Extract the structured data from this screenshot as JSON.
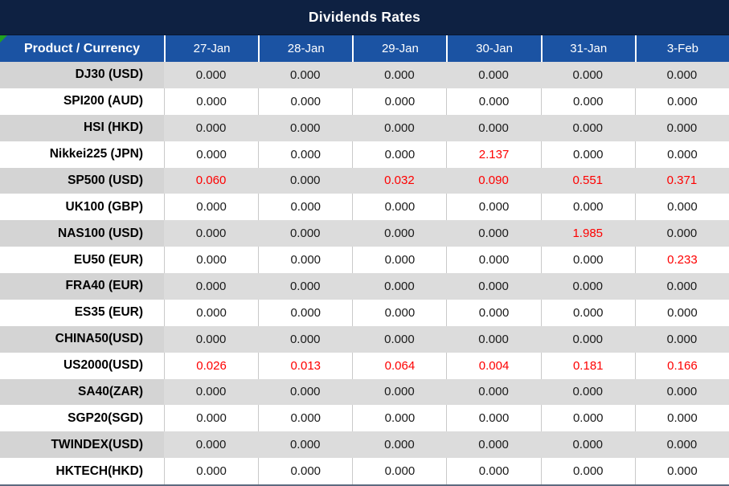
{
  "title": "Dividends Rates",
  "colors": {
    "title_bg": "#0e2142",
    "header_bg": "#1b53a3",
    "row_alt_bg": "#dcdcdc",
    "product_alt_bg": "#d4d4d4",
    "grid_line": "#c9c9c9",
    "negative_value": "#fe0000",
    "corner_marker": "#21a121"
  },
  "header": {
    "product_label": "Product / Currency",
    "dates": [
      "27-Jan",
      "28-Jan",
      "29-Jan",
      "30-Jan",
      "31-Jan",
      "3-Feb"
    ]
  },
  "rows": [
    {
      "product": "DJ30 (USD)",
      "values": [
        "0.000",
        "0.000",
        "0.000",
        "0.000",
        "0.000",
        "0.000"
      ],
      "red": [
        false,
        false,
        false,
        false,
        false,
        false
      ]
    },
    {
      "product": "SPI200 (AUD)",
      "values": [
        "0.000",
        "0.000",
        "0.000",
        "0.000",
        "0.000",
        "0.000"
      ],
      "red": [
        false,
        false,
        false,
        false,
        false,
        false
      ]
    },
    {
      "product": "HSI (HKD)",
      "values": [
        "0.000",
        "0.000",
        "0.000",
        "0.000",
        "0.000",
        "0.000"
      ],
      "red": [
        false,
        false,
        false,
        false,
        false,
        false
      ]
    },
    {
      "product": "Nikkei225 (JPN)",
      "values": [
        "0.000",
        "0.000",
        "0.000",
        "2.137",
        "0.000",
        "0.000"
      ],
      "red": [
        false,
        false,
        false,
        true,
        false,
        false
      ]
    },
    {
      "product": "SP500 (USD)",
      "values": [
        "0.060",
        "0.000",
        "0.032",
        "0.090",
        "0.551",
        "0.371"
      ],
      "red": [
        true,
        false,
        true,
        true,
        true,
        true
      ]
    },
    {
      "product": "UK100 (GBP)",
      "values": [
        "0.000",
        "0.000",
        "0.000",
        "0.000",
        "0.000",
        "0.000"
      ],
      "red": [
        false,
        false,
        false,
        false,
        false,
        false
      ]
    },
    {
      "product": "NAS100 (USD)",
      "values": [
        "0.000",
        "0.000",
        "0.000",
        "0.000",
        "1.985",
        "0.000"
      ],
      "red": [
        false,
        false,
        false,
        false,
        true,
        false
      ]
    },
    {
      "product": "EU50 (EUR)",
      "values": [
        "0.000",
        "0.000",
        "0.000",
        "0.000",
        "0.000",
        "0.233"
      ],
      "red": [
        false,
        false,
        false,
        false,
        false,
        true
      ]
    },
    {
      "product": "FRA40 (EUR)",
      "values": [
        "0.000",
        "0.000",
        "0.000",
        "0.000",
        "0.000",
        "0.000"
      ],
      "red": [
        false,
        false,
        false,
        false,
        false,
        false
      ]
    },
    {
      "product": "ES35 (EUR)",
      "values": [
        "0.000",
        "0.000",
        "0.000",
        "0.000",
        "0.000",
        "0.000"
      ],
      "red": [
        false,
        false,
        false,
        false,
        false,
        false
      ]
    },
    {
      "product": "CHINA50(USD)",
      "values": [
        "0.000",
        "0.000",
        "0.000",
        "0.000",
        "0.000",
        "0.000"
      ],
      "red": [
        false,
        false,
        false,
        false,
        false,
        false
      ]
    },
    {
      "product": "US2000(USD)",
      "values": [
        "0.026",
        "0.013",
        "0.064",
        "0.004",
        "0.181",
        "0.166"
      ],
      "red": [
        true,
        true,
        true,
        true,
        true,
        true
      ]
    },
    {
      "product": "SA40(ZAR)",
      "values": [
        "0.000",
        "0.000",
        "0.000",
        "0.000",
        "0.000",
        "0.000"
      ],
      "red": [
        false,
        false,
        false,
        false,
        false,
        false
      ]
    },
    {
      "product": "SGP20(SGD)",
      "values": [
        "0.000",
        "0.000",
        "0.000",
        "0.000",
        "0.000",
        "0.000"
      ],
      "red": [
        false,
        false,
        false,
        false,
        false,
        false
      ]
    },
    {
      "product": "TWINDEX(USD)",
      "values": [
        "0.000",
        "0.000",
        "0.000",
        "0.000",
        "0.000",
        "0.000"
      ],
      "red": [
        false,
        false,
        false,
        false,
        false,
        false
      ]
    },
    {
      "product": "HKTECH(HKD)",
      "values": [
        "0.000",
        "0.000",
        "0.000",
        "0.000",
        "0.000",
        "0.000"
      ],
      "red": [
        false,
        false,
        false,
        false,
        false,
        false
      ]
    }
  ]
}
